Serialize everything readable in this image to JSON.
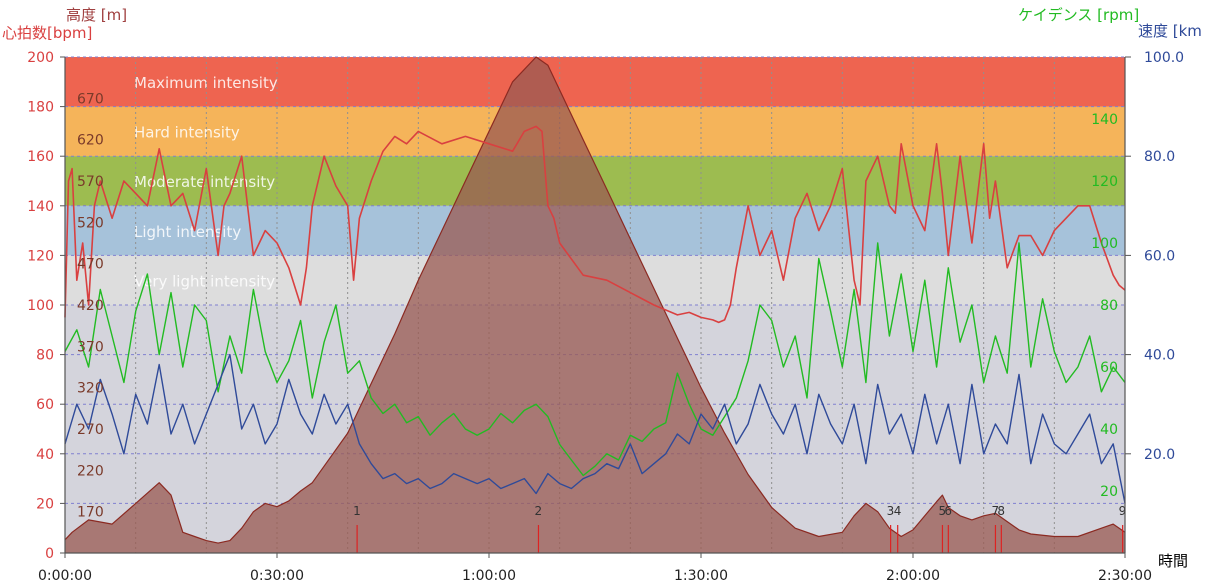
{
  "colors": {
    "heart_rate": "#d94040",
    "altitude_axis": "#a04040",
    "cadence": "#22bb22",
    "speed": "#2f4a99",
    "elevation_fill": "#9a5a52",
    "plot_bg": "#d4d4dc"
  },
  "chart_data": {
    "type": "line",
    "axes": {
      "heart_rate": {
        "title": "心拍数[bpm]",
        "range": [
          0,
          200
        ],
        "ticks": [
          "0",
          "20",
          "40",
          "60",
          "80",
          "100",
          "120",
          "140",
          "160",
          "180",
          "200"
        ]
      },
      "altitude": {
        "title": "高度 [m]",
        "range": [
          120,
          720
        ],
        "ticks": [
          "170",
          "220",
          "270",
          "320",
          "370",
          "420",
          "470",
          "520",
          "570",
          "620",
          "670"
        ]
      },
      "cadence": {
        "title": "ケイデンス [rpm]",
        "range": [
          0,
          160
        ],
        "ticks": [
          "20",
          "40",
          "60",
          "80",
          "100",
          "120",
          "140"
        ]
      },
      "speed": {
        "title": "速度 [km",
        "range": [
          0,
          100
        ],
        "ticks": [
          "20.0",
          "40.0",
          "60.0",
          "80.0",
          "100.0"
        ]
      },
      "time": {
        "title": "時間",
        "range_seconds": [
          0,
          9000
        ],
        "ticks": [
          "0:00:00",
          "0:30:00",
          "1:00:00",
          "1:30:00",
          "2:00:00",
          "2:30:00"
        ]
      }
    },
    "zones": [
      {
        "name": "Maximum intensity",
        "range": [
          180,
          200
        ],
        "color": "#ee6450"
      },
      {
        "name": "Hard intensity",
        "range": [
          160,
          180
        ],
        "color": "#f5b45a"
      },
      {
        "name": "Moderate intensity",
        "range": [
          140,
          160
        ],
        "color": "#9dbc50"
      },
      {
        "name": "Light intensity",
        "range": [
          120,
          140
        ],
        "color": "#a6c2da"
      },
      {
        "name": "Very light intensity",
        "range": [
          100,
          120
        ],
        "color": "#dddddd"
      }
    ],
    "laps": [
      {
        "label": "1",
        "time": 2480
      },
      {
        "label": "2",
        "time": 4020
      },
      {
        "label": "3",
        "time": 7010
      },
      {
        "label": "4",
        "time": 7070
      },
      {
        "label": "5",
        "time": 7450
      },
      {
        "label": "6",
        "time": 7500
      },
      {
        "label": "7",
        "time": 7900
      },
      {
        "label": "8",
        "time": 7950
      },
      {
        "label": "9",
        "time": 8980
      }
    ],
    "series": [
      {
        "name": "高度",
        "axis": "altitude",
        "x": [
          0,
          60,
          200,
          400,
          600,
          800,
          900,
          1000,
          1100,
          1200,
          1300,
          1400,
          1500,
          1600,
          1700,
          1800,
          1900,
          2000,
          2100,
          2200,
          2400,
          2600,
          2800,
          3000,
          3200,
          3400,
          3600,
          3800,
          4000,
          4100,
          4200,
          4400,
          4600,
          4800,
          5000,
          5200,
          5400,
          5600,
          5800,
          6000,
          6200,
          6400,
          6600,
          6700,
          6800,
          6900,
          7000,
          7100,
          7200,
          7300,
          7400,
          7450,
          7500,
          7600,
          7700,
          7800,
          7900,
          8000,
          8100,
          8200,
          8400,
          8600,
          8800,
          8900,
          9000
        ],
        "y": [
          136,
          145,
          160,
          155,
          180,
          205,
          190,
          145,
          140,
          135,
          132,
          135,
          150,
          170,
          180,
          176,
          183,
          195,
          205,
          225,
          265,
          325,
          385,
          450,
          510,
          570,
          630,
          690,
          720,
          710,
          680,
          620,
          560,
          500,
          440,
          380,
          320,
          265,
          215,
          175,
          150,
          140,
          145,
          165,
          180,
          170,
          150,
          140,
          148,
          165,
          182,
          190,
          175,
          165,
          160,
          165,
          168,
          158,
          148,
          143,
          140,
          140,
          150,
          155,
          145
        ]
      },
      {
        "name": "心拍数",
        "axis": "heart_rate",
        "x": [
          0,
          30,
          60,
          100,
          150,
          200,
          250,
          300,
          400,
          500,
          600,
          700,
          800,
          900,
          1000,
          1100,
          1200,
          1300,
          1350,
          1400,
          1500,
          1600,
          1700,
          1800,
          1900,
          2000,
          2050,
          2100,
          2200,
          2300,
          2400,
          2450,
          2500,
          2600,
          2700,
          2800,
          2900,
          3000,
          3200,
          3400,
          3600,
          3800,
          3900,
          4000,
          4050,
          4100,
          4150,
          4200,
          4400,
          4600,
          4800,
          5000,
          5200,
          5300,
          5400,
          5500,
          5550,
          5600,
          5650,
          5700,
          5800,
          5900,
          6000,
          6100,
          6200,
          6300,
          6400,
          6500,
          6600,
          6700,
          6750,
          6800,
          6900,
          7000,
          7050,
          7100,
          7200,
          7300,
          7400,
          7450,
          7500,
          7600,
          7700,
          7800,
          7850,
          7900,
          8000,
          8100,
          8200,
          8300,
          8400,
          8500,
          8600,
          8700,
          8800,
          8900,
          8950,
          9000
        ],
        "y": [
          95,
          150,
          155,
          110,
          125,
          100,
          140,
          150,
          135,
          150,
          145,
          140,
          163,
          140,
          145,
          130,
          155,
          120,
          140,
          145,
          160,
          120,
          130,
          125,
          115,
          100,
          115,
          140,
          160,
          148,
          140,
          110,
          135,
          150,
          162,
          168,
          165,
          170,
          165,
          168,
          165,
          162,
          170,
          172,
          170,
          140,
          135,
          125,
          112,
          110,
          105,
          100,
          96,
          97,
          95,
          94,
          93,
          94,
          100,
          115,
          140,
          120,
          130,
          110,
          135,
          145,
          130,
          140,
          155,
          110,
          100,
          150,
          160,
          140,
          137,
          165,
          140,
          130,
          165,
          145,
          120,
          160,
          125,
          165,
          135,
          150,
          115,
          128,
          128,
          120,
          130,
          135,
          140,
          140,
          125,
          112,
          108,
          106
        ]
      },
      {
        "name": "ケイデンス",
        "axis": "cadence",
        "x": [
          0,
          100,
          200,
          300,
          400,
          500,
          600,
          700,
          800,
          900,
          1000,
          1100,
          1200,
          1300,
          1400,
          1500,
          1600,
          1700,
          1800,
          1900,
          2000,
          2100,
          2200,
          2300,
          2400,
          2500,
          2600,
          2700,
          2800,
          2900,
          3000,
          3100,
          3200,
          3300,
          3400,
          3500,
          3600,
          3700,
          3800,
          3900,
          4000,
          4100,
          4200,
          4300,
          4400,
          4500,
          4600,
          4700,
          4800,
          4900,
          5000,
          5100,
          5200,
          5300,
          5400,
          5500,
          5600,
          5700,
          5800,
          5900,
          6000,
          6100,
          6200,
          6300,
          6400,
          6500,
          6600,
          6700,
          6800,
          6900,
          7000,
          7100,
          7200,
          7300,
          7400,
          7500,
          7600,
          7700,
          7800,
          7900,
          8000,
          8100,
          8200,
          8300,
          8400,
          8500,
          8600,
          8700,
          8800,
          8900,
          9000
        ],
        "y": [
          65,
          72,
          60,
          85,
          70,
          55,
          78,
          90,
          64,
          84,
          60,
          80,
          75,
          52,
          70,
          58,
          85,
          65,
          55,
          62,
          75,
          50,
          68,
          80,
          58,
          62,
          50,
          45,
          48,
          42,
          44,
          38,
          42,
          45,
          40,
          38,
          40,
          45,
          42,
          46,
          48,
          44,
          35,
          30,
          25,
          28,
          32,
          30,
          38,
          36,
          40,
          42,
          58,
          48,
          40,
          38,
          44,
          50,
          62,
          80,
          75,
          60,
          70,
          50,
          95,
          78,
          60,
          85,
          55,
          100,
          70,
          90,
          65,
          88,
          60,
          92,
          68,
          80,
          55,
          70,
          58,
          100,
          60,
          82,
          65,
          55,
          60,
          70,
          52,
          60,
          55
        ]
      },
      {
        "name": "速度",
        "axis": "speed",
        "x": [
          0,
          100,
          200,
          300,
          400,
          500,
          600,
          700,
          800,
          900,
          1000,
          1100,
          1200,
          1300,
          1400,
          1500,
          1600,
          1700,
          1800,
          1900,
          2000,
          2100,
          2200,
          2300,
          2400,
          2500,
          2600,
          2700,
          2800,
          2900,
          3000,
          3100,
          3200,
          3300,
          3400,
          3500,
          3600,
          3700,
          3800,
          3900,
          4000,
          4100,
          4200,
          4300,
          4400,
          4500,
          4600,
          4700,
          4800,
          4900,
          5000,
          5100,
          5200,
          5300,
          5400,
          5500,
          5600,
          5700,
          5800,
          5900,
          6000,
          6100,
          6200,
          6300,
          6400,
          6500,
          6600,
          6700,
          6800,
          6900,
          7000,
          7100,
          7200,
          7300,
          7400,
          7500,
          7600,
          7700,
          7800,
          7900,
          8000,
          8100,
          8200,
          8300,
          8400,
          8500,
          8600,
          8700,
          8800,
          8900,
          9000
        ],
        "y": [
          22,
          30,
          25,
          35,
          28,
          20,
          32,
          26,
          38,
          24,
          30,
          22,
          28,
          34,
          40,
          25,
          30,
          22,
          26,
          35,
          28,
          24,
          32,
          26,
          30,
          22,
          18,
          15,
          16,
          14,
          15,
          13,
          14,
          16,
          15,
          14,
          15,
          13,
          14,
          15,
          12,
          16,
          14,
          13,
          15,
          16,
          18,
          17,
          22,
          16,
          18,
          20,
          24,
          22,
          28,
          25,
          30,
          22,
          26,
          34,
          28,
          24,
          30,
          20,
          32,
          26,
          22,
          30,
          18,
          34,
          24,
          28,
          20,
          32,
          22,
          30,
          18,
          34,
          20,
          26,
          22,
          36,
          18,
          28,
          22,
          20,
          24,
          28,
          18,
          22,
          10
        ]
      }
    ]
  }
}
